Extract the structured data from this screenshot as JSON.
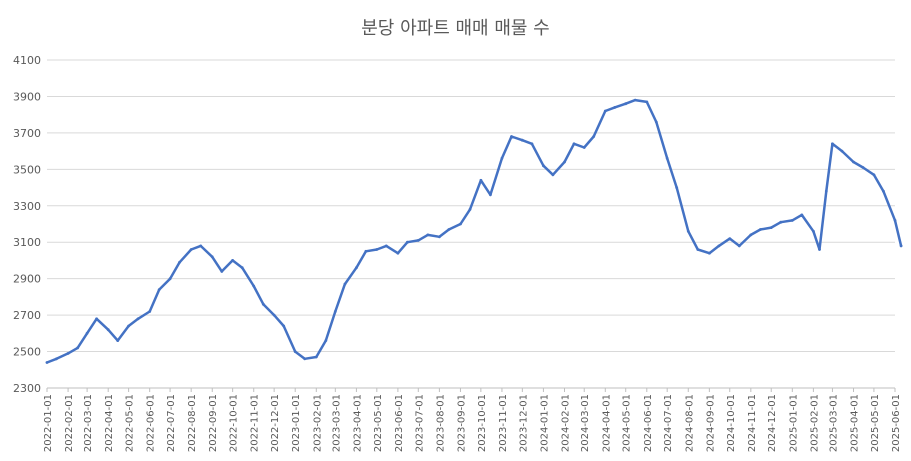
{
  "chart_data": {
    "type": "line",
    "title": "분당 아파트 매매 매물 수",
    "xlabel": "",
    "ylabel": "",
    "ylim": [
      2300,
      4100
    ],
    "y_ticks": [
      2300,
      2500,
      2700,
      2900,
      3100,
      3300,
      3500,
      3700,
      3900,
      4100
    ],
    "x_tick_labels": [
      "2022-01-01",
      "2022-02-01",
      "2022-03-01",
      "2022-04-01",
      "2022-05-01",
      "2022-06-01",
      "2022-07-01",
      "2022-08-01",
      "2022-09-01",
      "2022-10-01",
      "2022-11-01",
      "2022-12-01",
      "2023-01-01",
      "2023-02-01",
      "2023-03-01",
      "2023-04-01",
      "2023-05-01",
      "2023-06-01",
      "2023-07-01",
      "2023-08-01",
      "2023-09-01",
      "2023-10-01",
      "2023-11-01",
      "2023-12-01",
      "2024-01-01",
      "2024-02-01",
      "2024-03-01",
      "2024-04-01",
      "2024-05-01",
      "2024-06-01",
      "2024-07-01",
      "2024-08-01",
      "2024-09-01",
      "2024-10-01",
      "2024-11-01",
      "2024-12-01",
      "2025-01-01",
      "2025-02-01",
      "2025-03-01",
      "2025-04-01",
      "2025-05-01",
      "2025-06-01"
    ],
    "grid": true,
    "legend": "none",
    "series": [
      {
        "color": "#4472C4",
        "x": [
          "2022-01-01",
          "2022-01-15",
          "2022-02-01",
          "2022-02-15",
          "2022-03-01",
          "2022-03-15",
          "2022-04-01",
          "2022-04-15",
          "2022-05-01",
          "2022-05-15",
          "2022-06-01",
          "2022-06-15",
          "2022-07-01",
          "2022-07-15",
          "2022-08-01",
          "2022-08-15",
          "2022-09-01",
          "2022-09-15",
          "2022-10-01",
          "2022-10-15",
          "2022-11-01",
          "2022-11-15",
          "2022-12-01",
          "2022-12-15",
          "2023-01-01",
          "2023-01-15",
          "2023-02-01",
          "2023-02-15",
          "2023-03-01",
          "2023-03-15",
          "2023-04-01",
          "2023-04-15",
          "2023-05-01",
          "2023-05-15",
          "2023-06-01",
          "2023-06-15",
          "2023-07-01",
          "2023-07-15",
          "2023-08-01",
          "2023-08-15",
          "2023-09-01",
          "2023-09-15",
          "2023-10-01",
          "2023-10-15",
          "2023-11-01",
          "2023-11-15",
          "2023-12-01",
          "2023-12-15",
          "2024-01-01",
          "2024-01-15",
          "2024-02-01",
          "2024-02-15",
          "2024-03-01",
          "2024-03-15",
          "2024-04-01",
          "2024-04-15",
          "2024-05-01",
          "2024-05-15",
          "2024-06-01",
          "2024-06-15",
          "2024-07-01",
          "2024-07-15",
          "2024-08-01",
          "2024-08-15",
          "2024-09-01",
          "2024-09-15",
          "2024-10-01",
          "2024-10-15",
          "2024-11-01",
          "2024-11-15",
          "2024-12-01",
          "2024-12-15",
          "2025-01-01",
          "2025-01-15",
          "2025-02-01",
          "2025-02-10",
          "2025-02-20",
          "2025-03-01",
          "2025-03-15",
          "2025-04-01",
          "2025-04-15",
          "2025-05-01",
          "2025-05-15",
          "2025-06-01",
          "2025-06-10"
        ],
        "values": [
          2440,
          2460,
          2490,
          2520,
          2600,
          2680,
          2620,
          2560,
          2640,
          2680,
          2720,
          2840,
          2900,
          2990,
          3060,
          3080,
          3020,
          2940,
          3000,
          2960,
          2860,
          2760,
          2700,
          2640,
          2500,
          2460,
          2470,
          2560,
          2720,
          2870,
          2960,
          3050,
          3060,
          3080,
          3040,
          3100,
          3110,
          3140,
          3130,
          3170,
          3200,
          3280,
          3440,
          3360,
          3560,
          3680,
          3660,
          3640,
          3520,
          3470,
          3540,
          3640,
          3620,
          3680,
          3820,
          3840,
          3860,
          3880,
          3870,
          3760,
          3560,
          3400,
          3160,
          3060,
          3040,
          3080,
          3120,
          3080,
          3140,
          3170,
          3180,
          3210,
          3220,
          3250,
          3160,
          3060,
          3380,
          3640,
          3600,
          3540,
          3510,
          3470,
          3380,
          3220,
          3080
        ]
      }
    ]
  }
}
